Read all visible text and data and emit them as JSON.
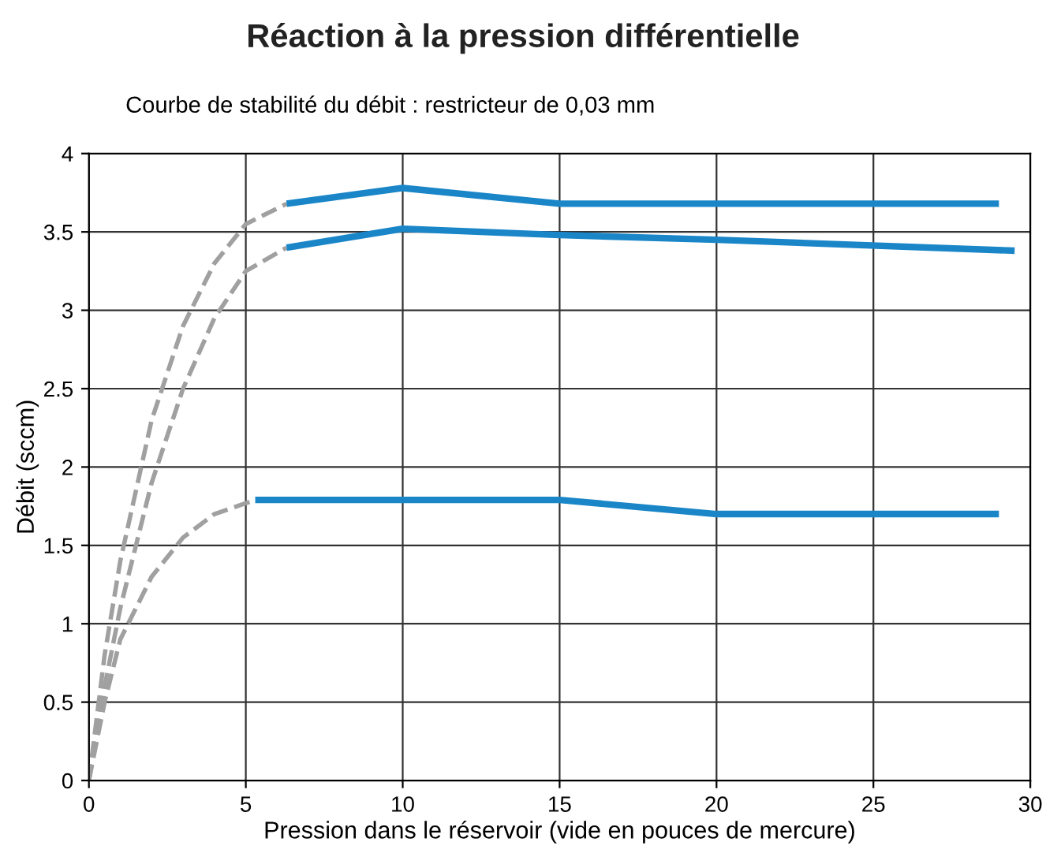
{
  "chart_data": {
    "type": "line",
    "title": "Réaction à la pression différentielle",
    "subtitle": "Courbe de stabilité du débit : restricteur de 0,03 mm",
    "xlabel": "Pression dans le réservoir (vide en pouces de mercure)",
    "ylabel": "Débit (sccm)",
    "xlim": [
      0,
      30
    ],
    "xticks": [
      0,
      5,
      10,
      15,
      20,
      25,
      30
    ],
    "ylim": [
      0,
      4
    ],
    "yticks": [
      0,
      0.5,
      1,
      1.5,
      2,
      2.5,
      3,
      3.5,
      4
    ],
    "grid": true,
    "legend": false,
    "marker": "none",
    "series": [
      {
        "color": "#a0a0a0",
        "line_style": "dashed",
        "x": [
          0,
          0.5,
          1,
          2,
          3,
          4,
          5,
          6.3
        ],
        "values": [
          0,
          0.8,
          1.4,
          2.3,
          2.9,
          3.3,
          3.55,
          3.68
        ]
      },
      {
        "color": "#a0a0a0",
        "line_style": "dashed",
        "x": [
          0,
          0.5,
          1,
          2,
          3,
          4,
          5,
          6.3
        ],
        "values": [
          0,
          0.6,
          1.1,
          1.9,
          2.5,
          2.95,
          3.25,
          3.4
        ]
      },
      {
        "color": "#a0a0a0",
        "line_style": "dashed",
        "x": [
          0,
          0.5,
          1,
          2,
          3,
          4,
          5.3
        ],
        "values": [
          0,
          0.5,
          0.9,
          1.3,
          1.55,
          1.7,
          1.79
        ]
      },
      {
        "color": "#1a86c8",
        "line_style": "solid",
        "x": [
          6.3,
          10,
          15,
          20,
          29
        ],
        "values": [
          3.68,
          3.78,
          3.68,
          3.68,
          3.68
        ]
      },
      {
        "color": "#1a86c8",
        "line_style": "solid",
        "x": [
          6.3,
          10,
          15,
          20,
          29.5
        ],
        "values": [
          3.4,
          3.52,
          3.48,
          3.45,
          3.38
        ]
      },
      {
        "color": "#1a86c8",
        "line_style": "solid",
        "x": [
          5.3,
          15,
          20,
          29
        ],
        "values": [
          1.79,
          1.79,
          1.7,
          1.7
        ]
      }
    ]
  }
}
